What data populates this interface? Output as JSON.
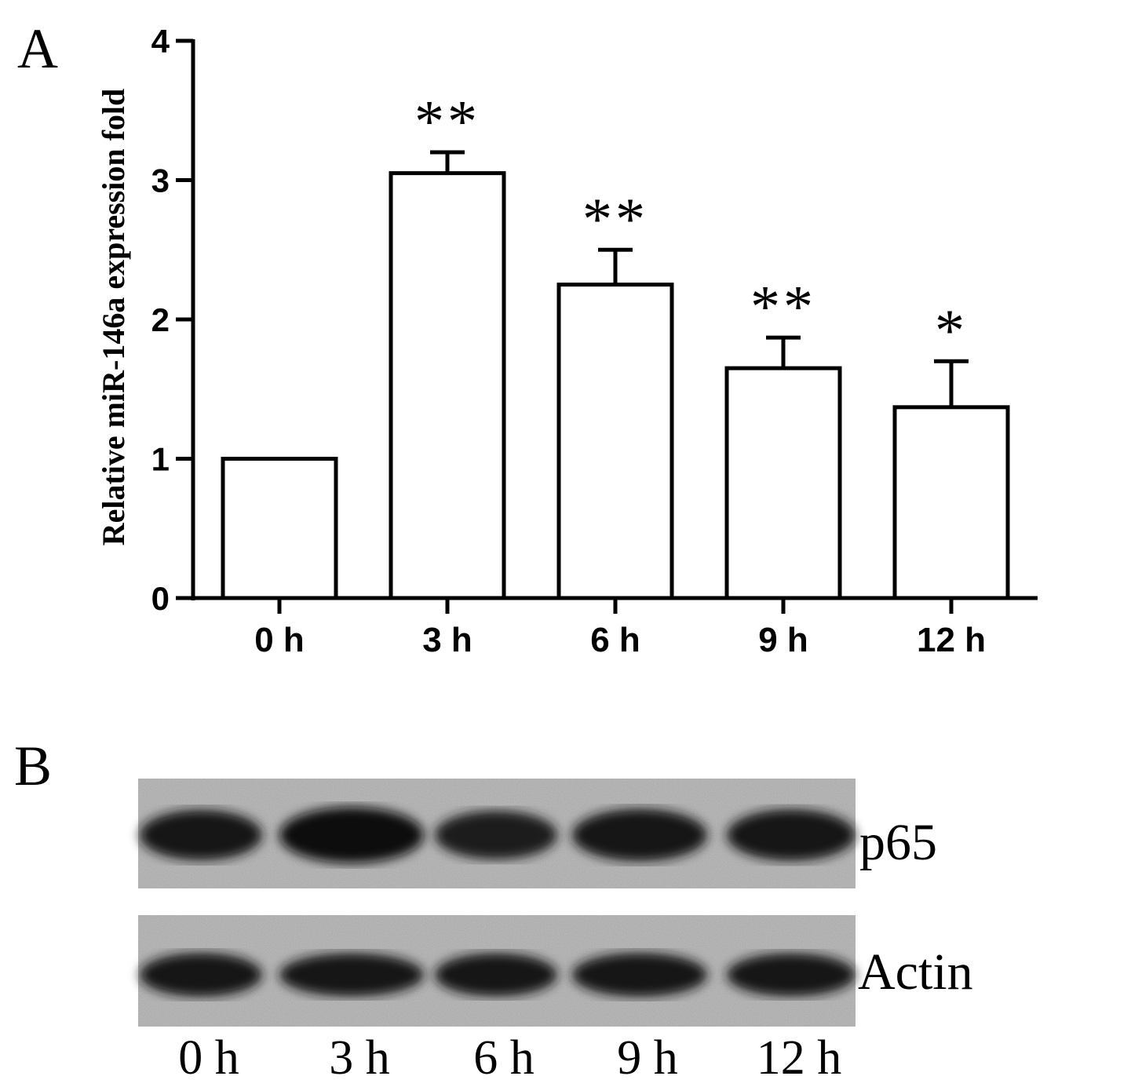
{
  "panel_a": {
    "label": "A"
  },
  "panel_b": {
    "label": "B",
    "blot_rows": [
      {
        "label": "p65",
        "band_intensity": [
          0.7,
          1.0,
          0.6,
          0.8,
          0.75
        ]
      },
      {
        "label": "Actin",
        "band_intensity": [
          0.85,
          0.8,
          0.8,
          0.85,
          0.8
        ]
      }
    ],
    "lane_labels": [
      "0 h",
      "3 h",
      "6 h",
      "9 h",
      "12 h"
    ]
  },
  "chart_data": {
    "type": "bar",
    "title": "",
    "xlabel": "",
    "ylabel": "Relative miR-146a expression fold",
    "categories": [
      "0 h",
      "3 h",
      "6 h",
      "9 h",
      "12 h"
    ],
    "values": [
      1.0,
      3.05,
      2.25,
      1.65,
      1.37
    ],
    "error_upper": [
      0,
      0.15,
      0.25,
      0.22,
      0.33
    ],
    "significance": [
      "",
      "**",
      "**",
      "**",
      "*"
    ],
    "ylim": [
      0,
      4
    ],
    "yticks": [
      0,
      1,
      2,
      3,
      4
    ],
    "grid": false,
    "bar_fill": "#ffffff",
    "bar_stroke": "#000000"
  }
}
